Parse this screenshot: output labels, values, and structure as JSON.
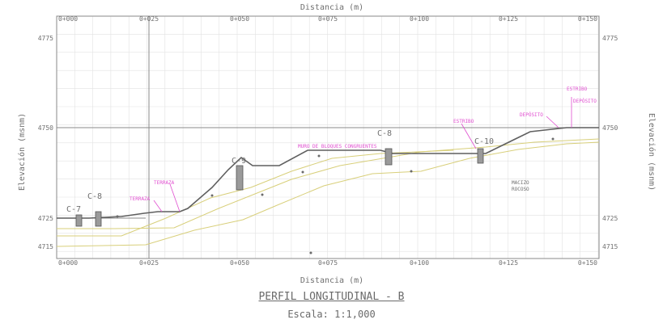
{
  "top_axis_title": "Distancia (m)",
  "bottom_axis_title": "Distancia (m)",
  "left_axis_title": "Elevación (msnm)",
  "right_axis_title": "Elevación (msnm)",
  "top_ticks": [
    "0+000",
    "0+025",
    "0+050",
    "0+075",
    "0+100",
    "0+125",
    "0+150"
  ],
  "bottom_ticks": [
    "0+000",
    "0+025",
    "0+050",
    "0+075",
    "0+100",
    "0+125",
    "0+150"
  ],
  "left_ticks": [
    "4775",
    "4750",
    "4725",
    "4715"
  ],
  "right_ticks": [
    "4775",
    "4750",
    "4725",
    "4715"
  ],
  "callouts": [
    "C-7",
    "C-8",
    "C-9",
    "C-8",
    "C-10"
  ],
  "pink_notes": [
    "TERRAZA",
    "TERRAZA",
    "DEPÓSITO",
    "DEPÓSITO",
    "MURO DE BLOQUES CONGRUENTES",
    "ESTRIBO",
    "ESTRIBO"
  ],
  "strata_note": [
    "MACIZO",
    "ROCOSO"
  ],
  "drawing_title": "PERFIL LONGITUDINAL - B",
  "scale_label": "Escala: 1:1,000",
  "colors": {
    "frame": "#8a8a8a",
    "grid": "#e2e2e2",
    "ground": "#5f5f5f",
    "strata": "#d8cf7a",
    "note": "#e04fd0",
    "text": "#6f6f6f"
  }
}
